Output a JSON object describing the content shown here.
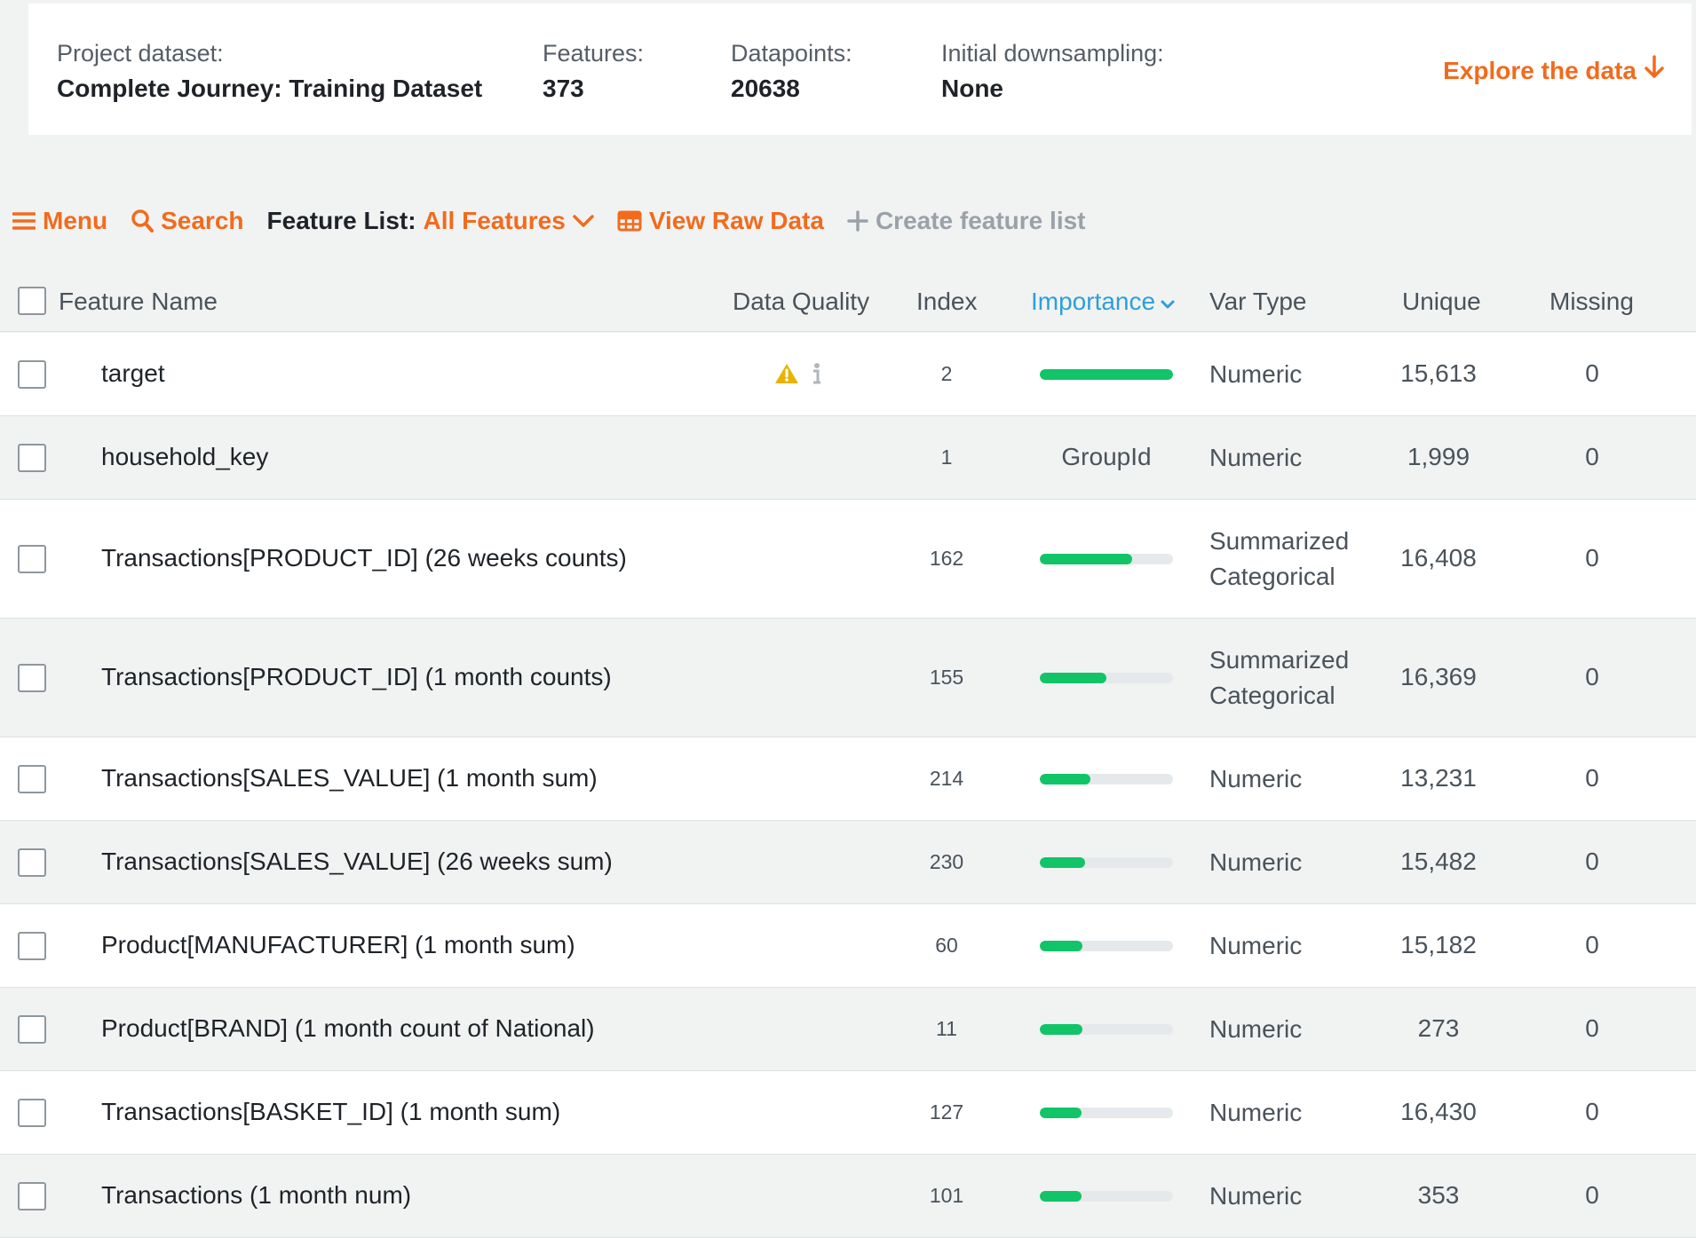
{
  "summary": {
    "project_label": "Project dataset:",
    "project_value": "Complete Journey: Training Dataset",
    "features_label": "Features:",
    "features_value": "373",
    "datapoints_label": "Datapoints:",
    "datapoints_value": "20638",
    "downsampling_label": "Initial downsampling:",
    "downsampling_value": "None",
    "explore_label": "Explore the data"
  },
  "toolbar": {
    "menu_label": "Menu",
    "search_label": "Search",
    "feature_list_label": "Feature List:",
    "feature_list_value": "All Features",
    "view_raw_label": "View Raw Data",
    "create_list_label": "Create feature list"
  },
  "table": {
    "headers": {
      "feature_name": "Feature Name",
      "data_quality": "Data Quality",
      "index": "Index",
      "importance": "Importance",
      "var_type": "Var Type",
      "unique": "Unique",
      "missing": "Missing"
    },
    "rows": [
      {
        "name": "target",
        "index": "2",
        "importance": 1.0,
        "importance_text": "",
        "var_type_1": "Numeric",
        "var_type_2": "",
        "unique": "15,613",
        "missing": "0",
        "data_quality": true
      },
      {
        "name": "household_key",
        "index": "1",
        "importance": null,
        "importance_text": "GroupId",
        "var_type_1": "Numeric",
        "var_type_2": "",
        "unique": "1,999",
        "missing": "0",
        "data_quality": false
      },
      {
        "name": "Transactions[PRODUCT_ID] (26 weeks counts)",
        "index": "162",
        "importance": 0.69,
        "importance_text": "",
        "var_type_1": "Summarized",
        "var_type_2": "Categorical",
        "unique": "16,408",
        "missing": "0",
        "data_quality": false
      },
      {
        "name": "Transactions[PRODUCT_ID] (1 month counts)",
        "index": "155",
        "importance": 0.5,
        "importance_text": "",
        "var_type_1": "Summarized",
        "var_type_2": "Categorical",
        "unique": "16,369",
        "missing": "0",
        "data_quality": false
      },
      {
        "name": "Transactions[SALES_VALUE] (1 month sum)",
        "index": "214",
        "importance": 0.38,
        "importance_text": "",
        "var_type_1": "Numeric",
        "var_type_2": "",
        "unique": "13,231",
        "missing": "0",
        "data_quality": false
      },
      {
        "name": "Transactions[SALES_VALUE] (26 weeks sum)",
        "index": "230",
        "importance": 0.34,
        "importance_text": "",
        "var_type_1": "Numeric",
        "var_type_2": "",
        "unique": "15,482",
        "missing": "0",
        "data_quality": false
      },
      {
        "name": "Product[MANUFACTURER] (1 month sum)",
        "index": "60",
        "importance": 0.32,
        "importance_text": "",
        "var_type_1": "Numeric",
        "var_type_2": "",
        "unique": "15,182",
        "missing": "0",
        "data_quality": false
      },
      {
        "name": "Product[BRAND] (1 month count of National)",
        "index": "11",
        "importance": 0.32,
        "importance_text": "",
        "var_type_1": "Numeric",
        "var_type_2": "",
        "unique": "273",
        "missing": "0",
        "data_quality": false
      },
      {
        "name": "Transactions[BASKET_ID] (1 month sum)",
        "index": "127",
        "importance": 0.31,
        "importance_text": "",
        "var_type_1": "Numeric",
        "var_type_2": "",
        "unique": "16,430",
        "missing": "0",
        "data_quality": false
      },
      {
        "name": "Transactions (1 month num)",
        "index": "101",
        "importance": 0.31,
        "importance_text": "",
        "var_type_1": "Numeric",
        "var_type_2": "",
        "unique": "353",
        "missing": "0",
        "data_quality": false
      }
    ]
  },
  "colors": {
    "accent_orange": "#f26b1d",
    "importance_blue": "#2d9fd9",
    "bar_green": "#12c468",
    "warning_yellow": "#e8b400"
  }
}
